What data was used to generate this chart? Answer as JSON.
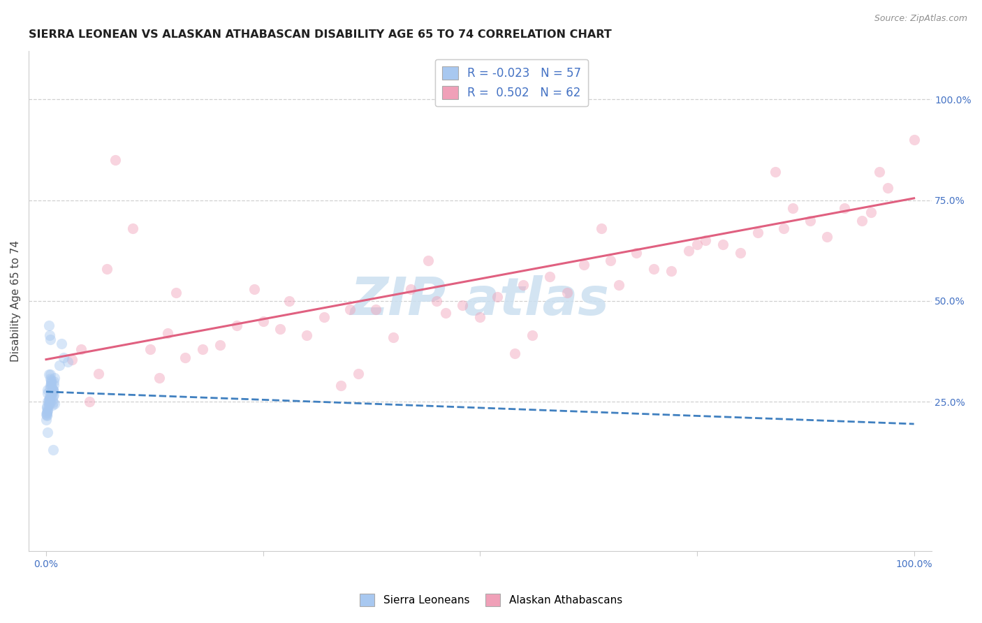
{
  "title": "SIERRA LEONEAN VS ALASKAN ATHABASCAN DISABILITY AGE 65 TO 74 CORRELATION CHART",
  "source_text": "Source: ZipAtlas.com",
  "ylabel": "Disability Age 65 to 74",
  "R_blue": -0.023,
  "N_blue": 57,
  "R_pink": 0.502,
  "N_pink": 62,
  "blue_color": "#a8c8f0",
  "pink_color": "#f0a0b8",
  "blue_line_color": "#4080c0",
  "pink_line_color": "#e06080",
  "watermark_color": "#cce0f0",
  "grid_color": "#d0d0d0",
  "background_color": "#ffffff",
  "legend_label_blue": "Sierra Leoneans",
  "legend_label_pink": "Alaskan Athabascans",
  "title_color": "#202020",
  "axis_tick_color": "#4472c4",
  "source_color": "#909090",
  "dot_size": 120,
  "dot_alpha": 0.45,
  "pink_line_x0": 0.0,
  "pink_line_y0": 0.355,
  "pink_line_x1": 1.0,
  "pink_line_y1": 0.755,
  "blue_line_x0": 0.0,
  "blue_line_y0": 0.275,
  "blue_line_x1": 1.0,
  "blue_line_y1": 0.195,
  "xlim": [
    -0.02,
    1.02
  ],
  "ylim": [
    -0.12,
    1.12
  ],
  "yticks": [
    0.25,
    0.5,
    0.75,
    1.0
  ],
  "ytick_labels": [
    "25.0%",
    "50.0%",
    "75.0%",
    "100.0%"
  ],
  "xtick_positions": [
    0.0,
    0.25,
    0.5,
    0.75,
    1.0
  ],
  "xtick_labels": [
    "0.0%",
    "",
    "",
    "",
    "100.0%"
  ],
  "blue_x": [
    0.005,
    0.008,
    0.003,
    0.006,
    0.01,
    0.002,
    0.0,
    0.007,
    0.004,
    0.001,
    0.009,
    0.001,
    0.003,
    0.006,
    0.004,
    0.008,
    0.002,
    0.005,
    0.001,
    0.007,
    0.003,
    0.006,
    0.008,
    0.001,
    0.004,
    0.005,
    0.009,
    0.007,
    0.002,
    0.006,
    0.0,
    0.004,
    0.002,
    0.007,
    0.005,
    0.003,
    0.009,
    0.006,
    0.001,
    0.008,
    0.003,
    0.005,
    0.001,
    0.007,
    0.002,
    0.006,
    0.01,
    0.008,
    0.015,
    0.02,
    0.018,
    0.025,
    0.005,
    0.002,
    0.008,
    0.004,
    0.003
  ],
  "blue_y": [
    0.265,
    0.28,
    0.245,
    0.295,
    0.31,
    0.25,
    0.22,
    0.272,
    0.258,
    0.235,
    0.3,
    0.215,
    0.318,
    0.268,
    0.282,
    0.248,
    0.228,
    0.29,
    0.238,
    0.275,
    0.255,
    0.305,
    0.278,
    0.225,
    0.262,
    0.248,
    0.292,
    0.242,
    0.272,
    0.298,
    0.205,
    0.258,
    0.232,
    0.282,
    0.308,
    0.252,
    0.268,
    0.288,
    0.222,
    0.278,
    0.242,
    0.318,
    0.218,
    0.255,
    0.28,
    0.3,
    0.245,
    0.265,
    0.34,
    0.36,
    0.395,
    0.35,
    0.405,
    0.175,
    0.13,
    0.415,
    0.44
  ],
  "pink_x": [
    0.03,
    0.06,
    0.1,
    0.14,
    0.18,
    0.22,
    0.28,
    0.32,
    0.08,
    0.15,
    0.2,
    0.35,
    0.4,
    0.45,
    0.5,
    0.55,
    0.6,
    0.65,
    0.7,
    0.75,
    0.8,
    0.85,
    0.9,
    0.95,
    1.0,
    0.12,
    0.25,
    0.3,
    0.38,
    0.42,
    0.48,
    0.52,
    0.58,
    0.62,
    0.68,
    0.72,
    0.78,
    0.82,
    0.88,
    0.92,
    0.97,
    0.05,
    0.16,
    0.27,
    0.36,
    0.46,
    0.56,
    0.66,
    0.76,
    0.86,
    0.96,
    0.04,
    0.13,
    0.24,
    0.34,
    0.44,
    0.54,
    0.64,
    0.74,
    0.84,
    0.94,
    0.07
  ],
  "pink_y": [
    0.355,
    0.32,
    0.68,
    0.42,
    0.38,
    0.44,
    0.5,
    0.46,
    0.85,
    0.52,
    0.39,
    0.48,
    0.41,
    0.5,
    0.46,
    0.54,
    0.52,
    0.6,
    0.58,
    0.64,
    0.62,
    0.68,
    0.66,
    0.72,
    0.9,
    0.38,
    0.45,
    0.415,
    0.48,
    0.53,
    0.49,
    0.51,
    0.56,
    0.59,
    0.62,
    0.575,
    0.64,
    0.67,
    0.7,
    0.73,
    0.78,
    0.25,
    0.36,
    0.43,
    0.32,
    0.47,
    0.415,
    0.54,
    0.65,
    0.73,
    0.82,
    0.38,
    0.31,
    0.53,
    0.29,
    0.6,
    0.37,
    0.68,
    0.625,
    0.82,
    0.7,
    0.58
  ]
}
